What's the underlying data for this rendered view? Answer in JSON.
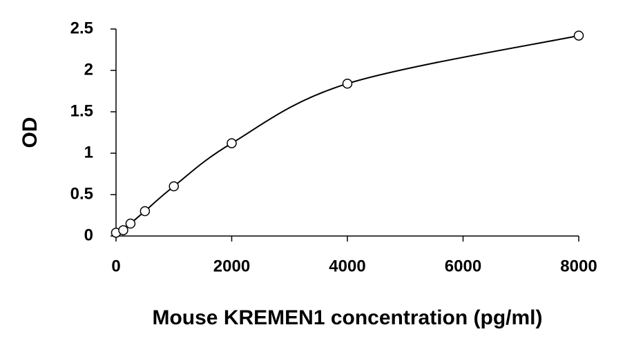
{
  "chart_data": {
    "type": "scatter",
    "x_label": "Mouse KREMEN1 concentration (pg/ml)",
    "y_label": "OD",
    "x": [
      0,
      125,
      250,
      500,
      1000,
      2000,
      4000,
      8000
    ],
    "values": [
      0.04,
      0.07,
      0.15,
      0.3,
      0.6,
      1.12,
      1.84,
      2.42
    ],
    "color": "#000000",
    "xlim": [
      0,
      8000
    ],
    "xticks": [
      0,
      2000,
      4000,
      6000,
      8000
    ],
    "ylim": [
      0,
      2.5
    ],
    "yticks": [
      0,
      0.5,
      1,
      1.5,
      2,
      2.5
    ],
    "grid": false
  }
}
